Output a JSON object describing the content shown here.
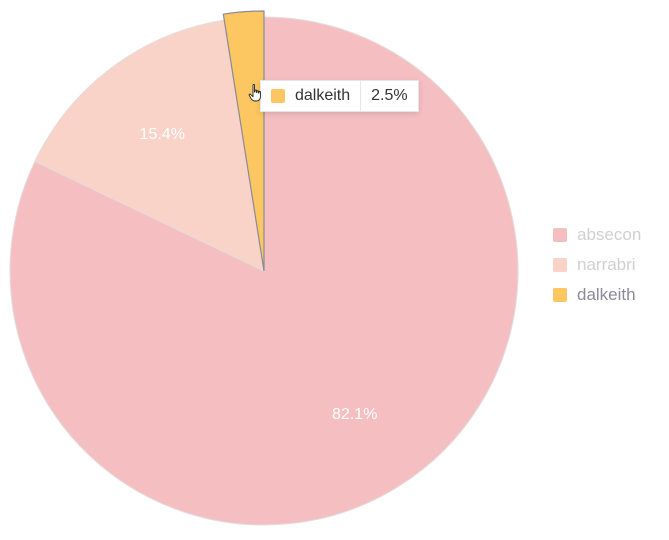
{
  "chart_data": {
    "type": "pie",
    "categories": [
      "absecon",
      "narrabri",
      "dalkeith"
    ],
    "values": [
      82.1,
      15.4,
      2.5
    ],
    "unit": "%",
    "legend": "right",
    "colors": [
      "#f5bfc1",
      "#f9d3c7",
      "#fcc660"
    ],
    "highlighted": "dalkeith"
  },
  "tooltip": {
    "name": "dalkeith",
    "value": "2.5%",
    "color": "#fcc660"
  }
}
